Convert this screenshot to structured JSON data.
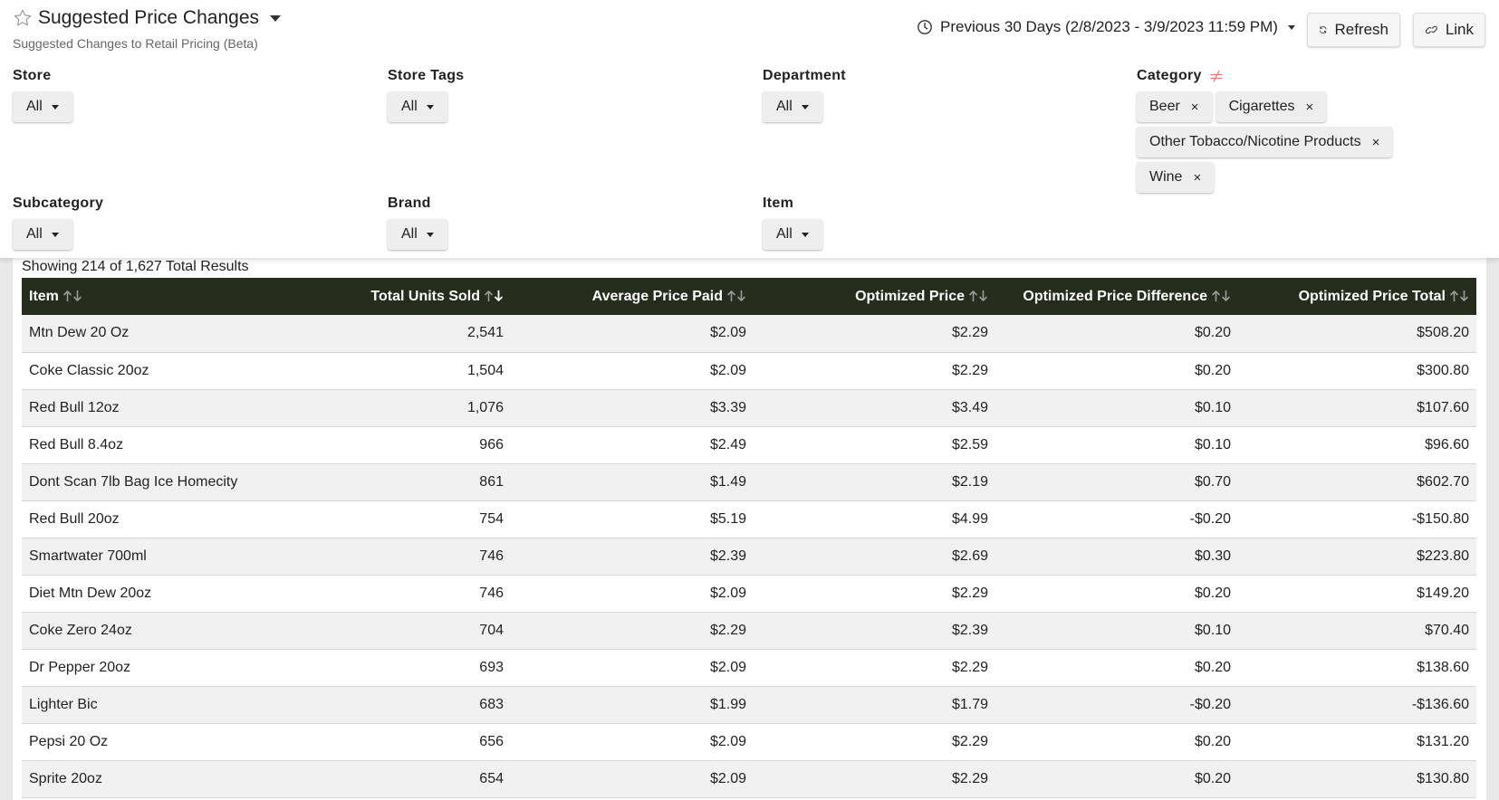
{
  "header": {
    "title": "Suggested Price Changes",
    "subtitle": "Suggested Changes to Retail Pricing (Beta)",
    "date_range": "Previous 30 Days (2/8/2023 - 3/9/2023 11:59 PM)",
    "refresh_label": "Refresh",
    "link_label": "Link"
  },
  "filters": {
    "store": {
      "label": "Store",
      "value": "All"
    },
    "store_tags": {
      "label": "Store Tags",
      "value": "All"
    },
    "department": {
      "label": "Department",
      "value": "All"
    },
    "category": {
      "label": "Category",
      "chips": [
        "Beer",
        "Cigarettes",
        "Other Tobacco/Nicotine Products",
        "Wine"
      ],
      "remove_glyph": "×"
    },
    "subcategory": {
      "label": "Subcategory",
      "value": "All"
    },
    "brand": {
      "label": "Brand",
      "value": "All"
    },
    "item": {
      "label": "Item",
      "value": "All"
    }
  },
  "results": {
    "count_text": "Showing 214 of 1,627 Total Results",
    "columns": [
      "Item",
      "Total Units Sold",
      "Average Price Paid",
      "Optimized Price",
      "Optimized Price Difference",
      "Optimized Price Total"
    ],
    "rows": [
      [
        "Mtn Dew 20 Oz",
        "2,541",
        "$2.09",
        "$2.29",
        "$0.20",
        "$508.20"
      ],
      [
        "Coke Classic 20oz",
        "1,504",
        "$2.09",
        "$2.29",
        "$0.20",
        "$300.80"
      ],
      [
        "Red Bull 12oz",
        "1,076",
        "$3.39",
        "$3.49",
        "$0.10",
        "$107.60"
      ],
      [
        "Red Bull 8.4oz",
        "966",
        "$2.49",
        "$2.59",
        "$0.10",
        "$96.60"
      ],
      [
        "Dont Scan 7lb Bag Ice Homecity",
        "861",
        "$1.49",
        "$2.19",
        "$0.70",
        "$602.70"
      ],
      [
        "Red Bull 20oz",
        "754",
        "$5.19",
        "$4.99",
        "-$0.20",
        "-$150.80"
      ],
      [
        "Smartwater 700ml",
        "746",
        "$2.39",
        "$2.69",
        "$0.30",
        "$223.80"
      ],
      [
        "Diet Mtn Dew 20oz",
        "746",
        "$2.09",
        "$2.29",
        "$0.20",
        "$149.20"
      ],
      [
        "Coke Zero 24oz",
        "704",
        "$2.29",
        "$2.39",
        "$0.10",
        "$70.40"
      ],
      [
        "Dr Pepper 20oz",
        "693",
        "$2.09",
        "$2.29",
        "$0.20",
        "$138.60"
      ],
      [
        "Lighter Bic",
        "683",
        "$1.99",
        "$1.79",
        "-$0.20",
        "-$136.60"
      ],
      [
        "Pepsi 20 Oz",
        "656",
        "$2.09",
        "$2.29",
        "$0.20",
        "$131.20"
      ],
      [
        "Sprite 20oz",
        "654",
        "$2.09",
        "$2.29",
        "$0.20",
        "$130.80"
      ]
    ]
  },
  "colors": {
    "table_header_bg": "#252e1c",
    "not_equal_icon": "#e8787a"
  }
}
